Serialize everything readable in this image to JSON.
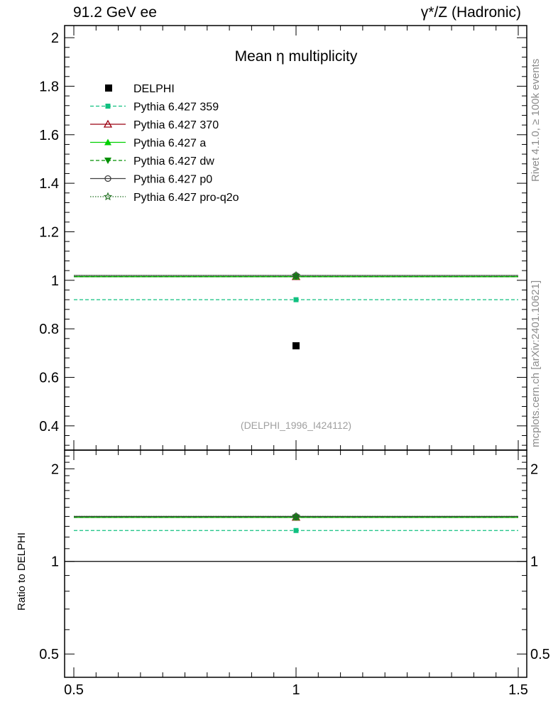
{
  "header": {
    "left": "91.2 GeV ee",
    "right": "γ*/Z (Hadronic)"
  },
  "side_labels": {
    "rivet": "Rivet 4.1.0, ≥ 100k events",
    "mcplots": "mcplots.cern.ch [arXiv:2401.10621]"
  },
  "chart_data": {
    "type": "scatter",
    "title": "Mean η multiplicity",
    "annotation": "(DELPHI_1996_I424112)",
    "xlabel": "",
    "ylabel": "",
    "xlim": [
      0.5,
      1.5
    ],
    "ylim": [
      0.3,
      2.05
    ],
    "xticks": [
      0.5,
      1,
      1.5
    ],
    "xtick_labels": [
      "0.5",
      "1",
      "1.5"
    ],
    "yticks": [
      0.4,
      0.6,
      0.8,
      1,
      1.2,
      1.4,
      1.6,
      1.8,
      2
    ],
    "ytick_labels": [
      "0.4",
      "0.6",
      "0.8",
      "1",
      "1.2",
      "1.4",
      "1.6",
      "1.8",
      "2"
    ],
    "data": {
      "name": "DELPHI",
      "x": 1,
      "y": 0.73,
      "color": "#000000",
      "marker": "filled-square"
    },
    "series": [
      {
        "name": "Pythia 6.427 359",
        "x": [
          0.5,
          1,
          1.5
        ],
        "y": 0.92,
        "color": "#10c080",
        "dash": "dashed",
        "marker": "filled-square-small"
      },
      {
        "name": "Pythia 6.427 370",
        "x": [
          0.5,
          1,
          1.5
        ],
        "y": 1.015,
        "color": "#9b0010",
        "dash": "solid",
        "marker": "open-triangle"
      },
      {
        "name": "Pythia 6.427 a",
        "x": [
          0.5,
          1,
          1.5
        ],
        "y": 1.015,
        "color": "#00d000",
        "dash": "solid",
        "marker": "filled-triangle"
      },
      {
        "name": "Pythia 6.427 dw",
        "x": [
          0.5,
          1,
          1.5
        ],
        "y": 1.015,
        "color": "#009000",
        "dash": "dashed",
        "marker": "filled-triangle-down"
      },
      {
        "name": "Pythia 6.427 p0",
        "x": [
          0.5,
          1,
          1.5
        ],
        "y": 1.02,
        "color": "#404040",
        "dash": "solid",
        "marker": "open-circle"
      },
      {
        "name": "Pythia 6.427 pro-q2o",
        "x": [
          0.5,
          1,
          1.5
        ],
        "y": 1.02,
        "color": "#207020",
        "dash": "dotted",
        "marker": "open-star"
      }
    ],
    "ratio": {
      "ylabel": "Ratio to DELPHI",
      "scale": "log",
      "ylim": [
        0.42,
        2.3
      ],
      "yticks": [
        0.5,
        1,
        2
      ],
      "ytick_labels": [
        "0.5",
        "1",
        "2"
      ],
      "reference": 1,
      "values": [
        1.26,
        1.39,
        1.39,
        1.39,
        1.4,
        1.4
      ]
    }
  }
}
